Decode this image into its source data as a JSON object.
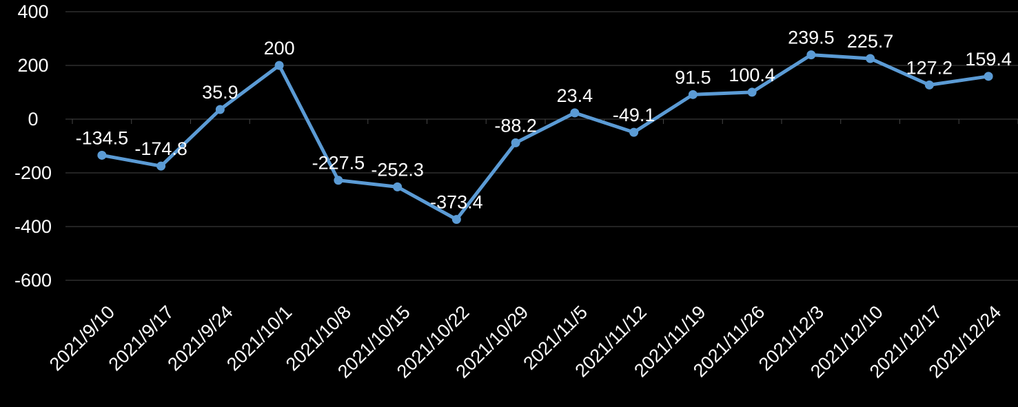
{
  "chart_data": {
    "type": "line",
    "title": "",
    "xlabel": "",
    "ylabel": "",
    "legend": "none",
    "grid": true,
    "categories": [
      "2021/9/10",
      "2021/9/17",
      "2021/9/24",
      "2021/10/1",
      "2021/10/8",
      "2021/10/15",
      "2021/10/22",
      "2021/10/29",
      "2021/11/5",
      "2021/11/12",
      "2021/11/19",
      "2021/11/26",
      "2021/12/3",
      "2021/12/10",
      "2021/12/17",
      "2021/12/24"
    ],
    "values": [
      -134.5,
      -174.8,
      35.9,
      200,
      -227.5,
      -252.3,
      -373.4,
      -88.2,
      23.4,
      -49.1,
      91.5,
      100.4,
      239.5,
      225.7,
      127.2,
      159.4
    ],
    "data_labels": [
      "-134.5",
      "-174.8",
      "35.9",
      "200",
      "-227.5",
      "-252.3",
      "-373.4",
      "-88.2",
      "23.4",
      "-49.1",
      "91.5",
      "100.4",
      "239.5",
      "225.7",
      "127.2",
      "159.4"
    ],
    "yticks": [
      400,
      200,
      0,
      -200,
      -400,
      -600
    ],
    "ylim": [
      -600,
      400
    ],
    "ytick_step": 200,
    "colors": {
      "line": "#5B9BD5",
      "marker": "#5B9BD5",
      "background": "#000000",
      "text": "#FFFFFF",
      "gridline": "#464646"
    }
  }
}
